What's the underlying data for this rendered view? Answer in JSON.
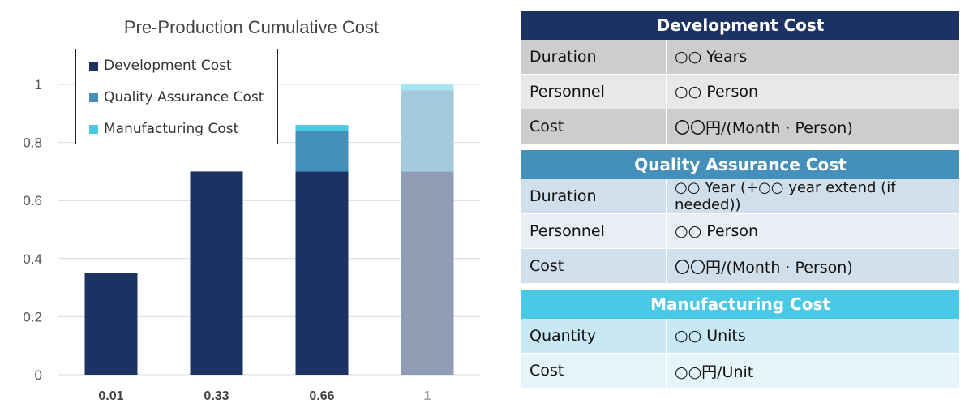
{
  "colors": {
    "development": "#1c3263",
    "quality": "#4590bb",
    "manufacturing": "#49c9e5",
    "faded_development": "#8f9cb3",
    "faded_upper": "#a3cadc",
    "faded_top": "#a7e3f1"
  },
  "chart_data": {
    "type": "bar",
    "stacked": true,
    "title": "Pre-Production Cumulative Cost",
    "categories": [
      "0.01",
      "0.33",
      "0.66",
      "1"
    ],
    "series": [
      {
        "name": "Development Cost",
        "values": [
          0.35,
          0.7,
          0.7,
          0.7
        ]
      },
      {
        "name": "Quality Assurance Cost",
        "values": [
          0,
          0,
          0.14,
          0.28
        ]
      },
      {
        "name": "Manufacturing Cost",
        "values": [
          0,
          0,
          0.02,
          0.02
        ]
      }
    ],
    "faded_category": "1",
    "ylim": [
      0,
      1
    ],
    "yticks": [
      "0",
      "0.2",
      "0.4",
      "0.6",
      "0.8",
      "1"
    ],
    "ytick_values": [
      0,
      0.2,
      0.4,
      0.6,
      0.8,
      1
    ],
    "grid": true,
    "legend": "top-left"
  },
  "tables": {
    "development": {
      "title": "Development Cost",
      "rows": [
        {
          "key": "Duration",
          "value": "○○ Years"
        },
        {
          "key": "Personnel",
          "value": "○○ Person"
        },
        {
          "key": "Cost",
          "value": "〇〇円/(Month · Person)"
        }
      ]
    },
    "quality": {
      "title": "Quality Assurance Cost",
      "rows": [
        {
          "key": "Duration",
          "value": "○○ Year (+○○ year extend (if needed))"
        },
        {
          "key": "Personnel",
          "value": "○○ Person"
        },
        {
          "key": "Cost",
          "value": "〇〇円/(Month · Person)"
        }
      ]
    },
    "manufacturing": {
      "title": "Manufacturing Cost",
      "rows": [
        {
          "key": "Quantity",
          "value": "○○ Units"
        },
        {
          "key": "Cost",
          "value": "○○円/Unit"
        }
      ]
    }
  }
}
